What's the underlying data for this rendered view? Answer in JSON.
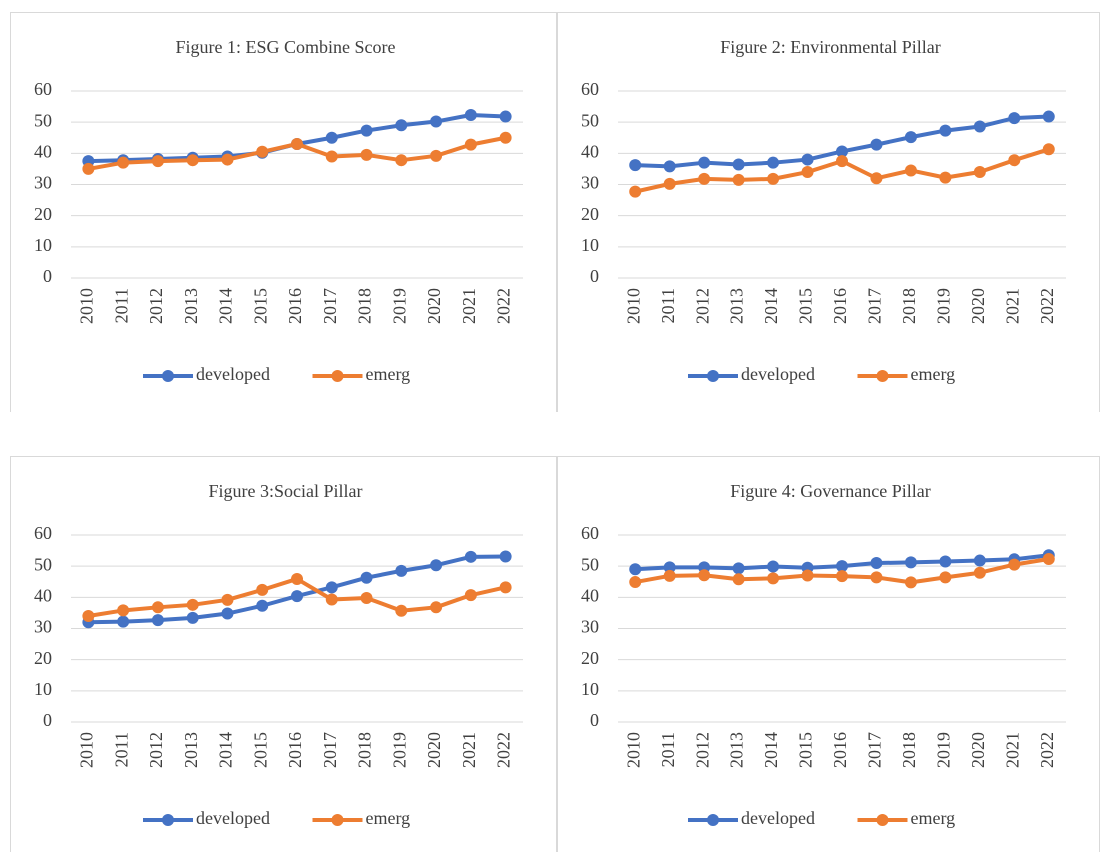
{
  "chart_data": [
    {
      "type": "line",
      "title": "Figure 1: ESG Combine Score",
      "categories": [
        "2010",
        "2011",
        "2012",
        "2013",
        "2014",
        "2015",
        "2016",
        "2017",
        "2018",
        "2019",
        "2020",
        "2021",
        "2022"
      ],
      "series": [
        {
          "name": "developed",
          "color": "#4472c4",
          "values": [
            37.5,
            37.8,
            38.2,
            38.6,
            39,
            40.2,
            43,
            45,
            47.3,
            49,
            50.2,
            52.3,
            51.8
          ]
        },
        {
          "name": "emerg",
          "color": "#ed7d31",
          "values": [
            35,
            37,
            37.5,
            37.8,
            38,
            40.5,
            43,
            39,
            39.5,
            37.8,
            39.2,
            42.8,
            45
          ]
        }
      ],
      "ylim": [
        0,
        60
      ],
      "yticks": [
        0,
        10,
        20,
        30,
        40,
        50,
        60
      ],
      "grid": true,
      "legend": "bottom"
    },
    {
      "type": "line",
      "title": "Figure 2: Environmental Pillar",
      "categories": [
        "2010",
        "2011",
        "2012",
        "2013",
        "2014",
        "2015",
        "2016",
        "2017",
        "2018",
        "2019",
        "2020",
        "2021",
        "2022"
      ],
      "series": [
        {
          "name": "developed",
          "color": "#4472c4",
          "values": [
            36.2,
            35.8,
            37,
            36.4,
            37,
            38,
            40.6,
            42.8,
            45.2,
            47.3,
            48.6,
            51.3,
            51.8
          ]
        },
        {
          "name": "emerg",
          "color": "#ed7d31",
          "values": [
            27.7,
            30.2,
            31.8,
            31.5,
            31.8,
            34,
            37.5,
            32,
            34.5,
            32.2,
            34,
            37.8,
            41.3
          ]
        }
      ],
      "ylim": [
        0,
        60
      ],
      "yticks": [
        0,
        10,
        20,
        30,
        40,
        50,
        60
      ],
      "grid": true,
      "legend": "bottom"
    },
    {
      "type": "line",
      "title": "Figure 3:Social Pillar",
      "categories": [
        "2010",
        "2011",
        "2012",
        "2013",
        "2014",
        "2015",
        "2016",
        "2017",
        "2018",
        "2019",
        "2020",
        "2021",
        "2022"
      ],
      "series": [
        {
          "name": "developed",
          "color": "#4472c4",
          "values": [
            32,
            32.2,
            32.7,
            33.4,
            34.8,
            37.3,
            40.4,
            43.2,
            46.3,
            48.5,
            50.3,
            53,
            53.1
          ]
        },
        {
          "name": "emerg",
          "color": "#ed7d31",
          "values": [
            34,
            35.8,
            36.8,
            37.6,
            39.2,
            42.4,
            45.9,
            39.3,
            39.8,
            35.7,
            36.8,
            40.7,
            43.2
          ]
        }
      ],
      "ylim": [
        0,
        60
      ],
      "yticks": [
        0,
        10,
        20,
        30,
        40,
        50,
        60
      ],
      "grid": true,
      "legend": "bottom"
    },
    {
      "type": "line",
      "title": "Figure 4: Governance Pillar",
      "categories": [
        "2010",
        "2011",
        "2012",
        "2013",
        "2014",
        "2015",
        "2016",
        "2017",
        "2018",
        "2019",
        "2020",
        "2021",
        "2022"
      ],
      "series": [
        {
          "name": "developed",
          "color": "#4472c4",
          "values": [
            49,
            49.6,
            49.6,
            49.3,
            49.9,
            49.5,
            50,
            51,
            51.2,
            51.5,
            51.8,
            52.2,
            53.5
          ]
        },
        {
          "name": "emerg",
          "color": "#ed7d31",
          "values": [
            44.9,
            46.9,
            47.1,
            45.8,
            46.1,
            47,
            46.8,
            46.4,
            44.8,
            46.4,
            47.9,
            50.5,
            52.3
          ]
        }
      ],
      "ylim": [
        0,
        60
      ],
      "yticks": [
        0,
        10,
        20,
        30,
        40,
        50,
        60
      ],
      "grid": true,
      "legend": "bottom"
    }
  ]
}
